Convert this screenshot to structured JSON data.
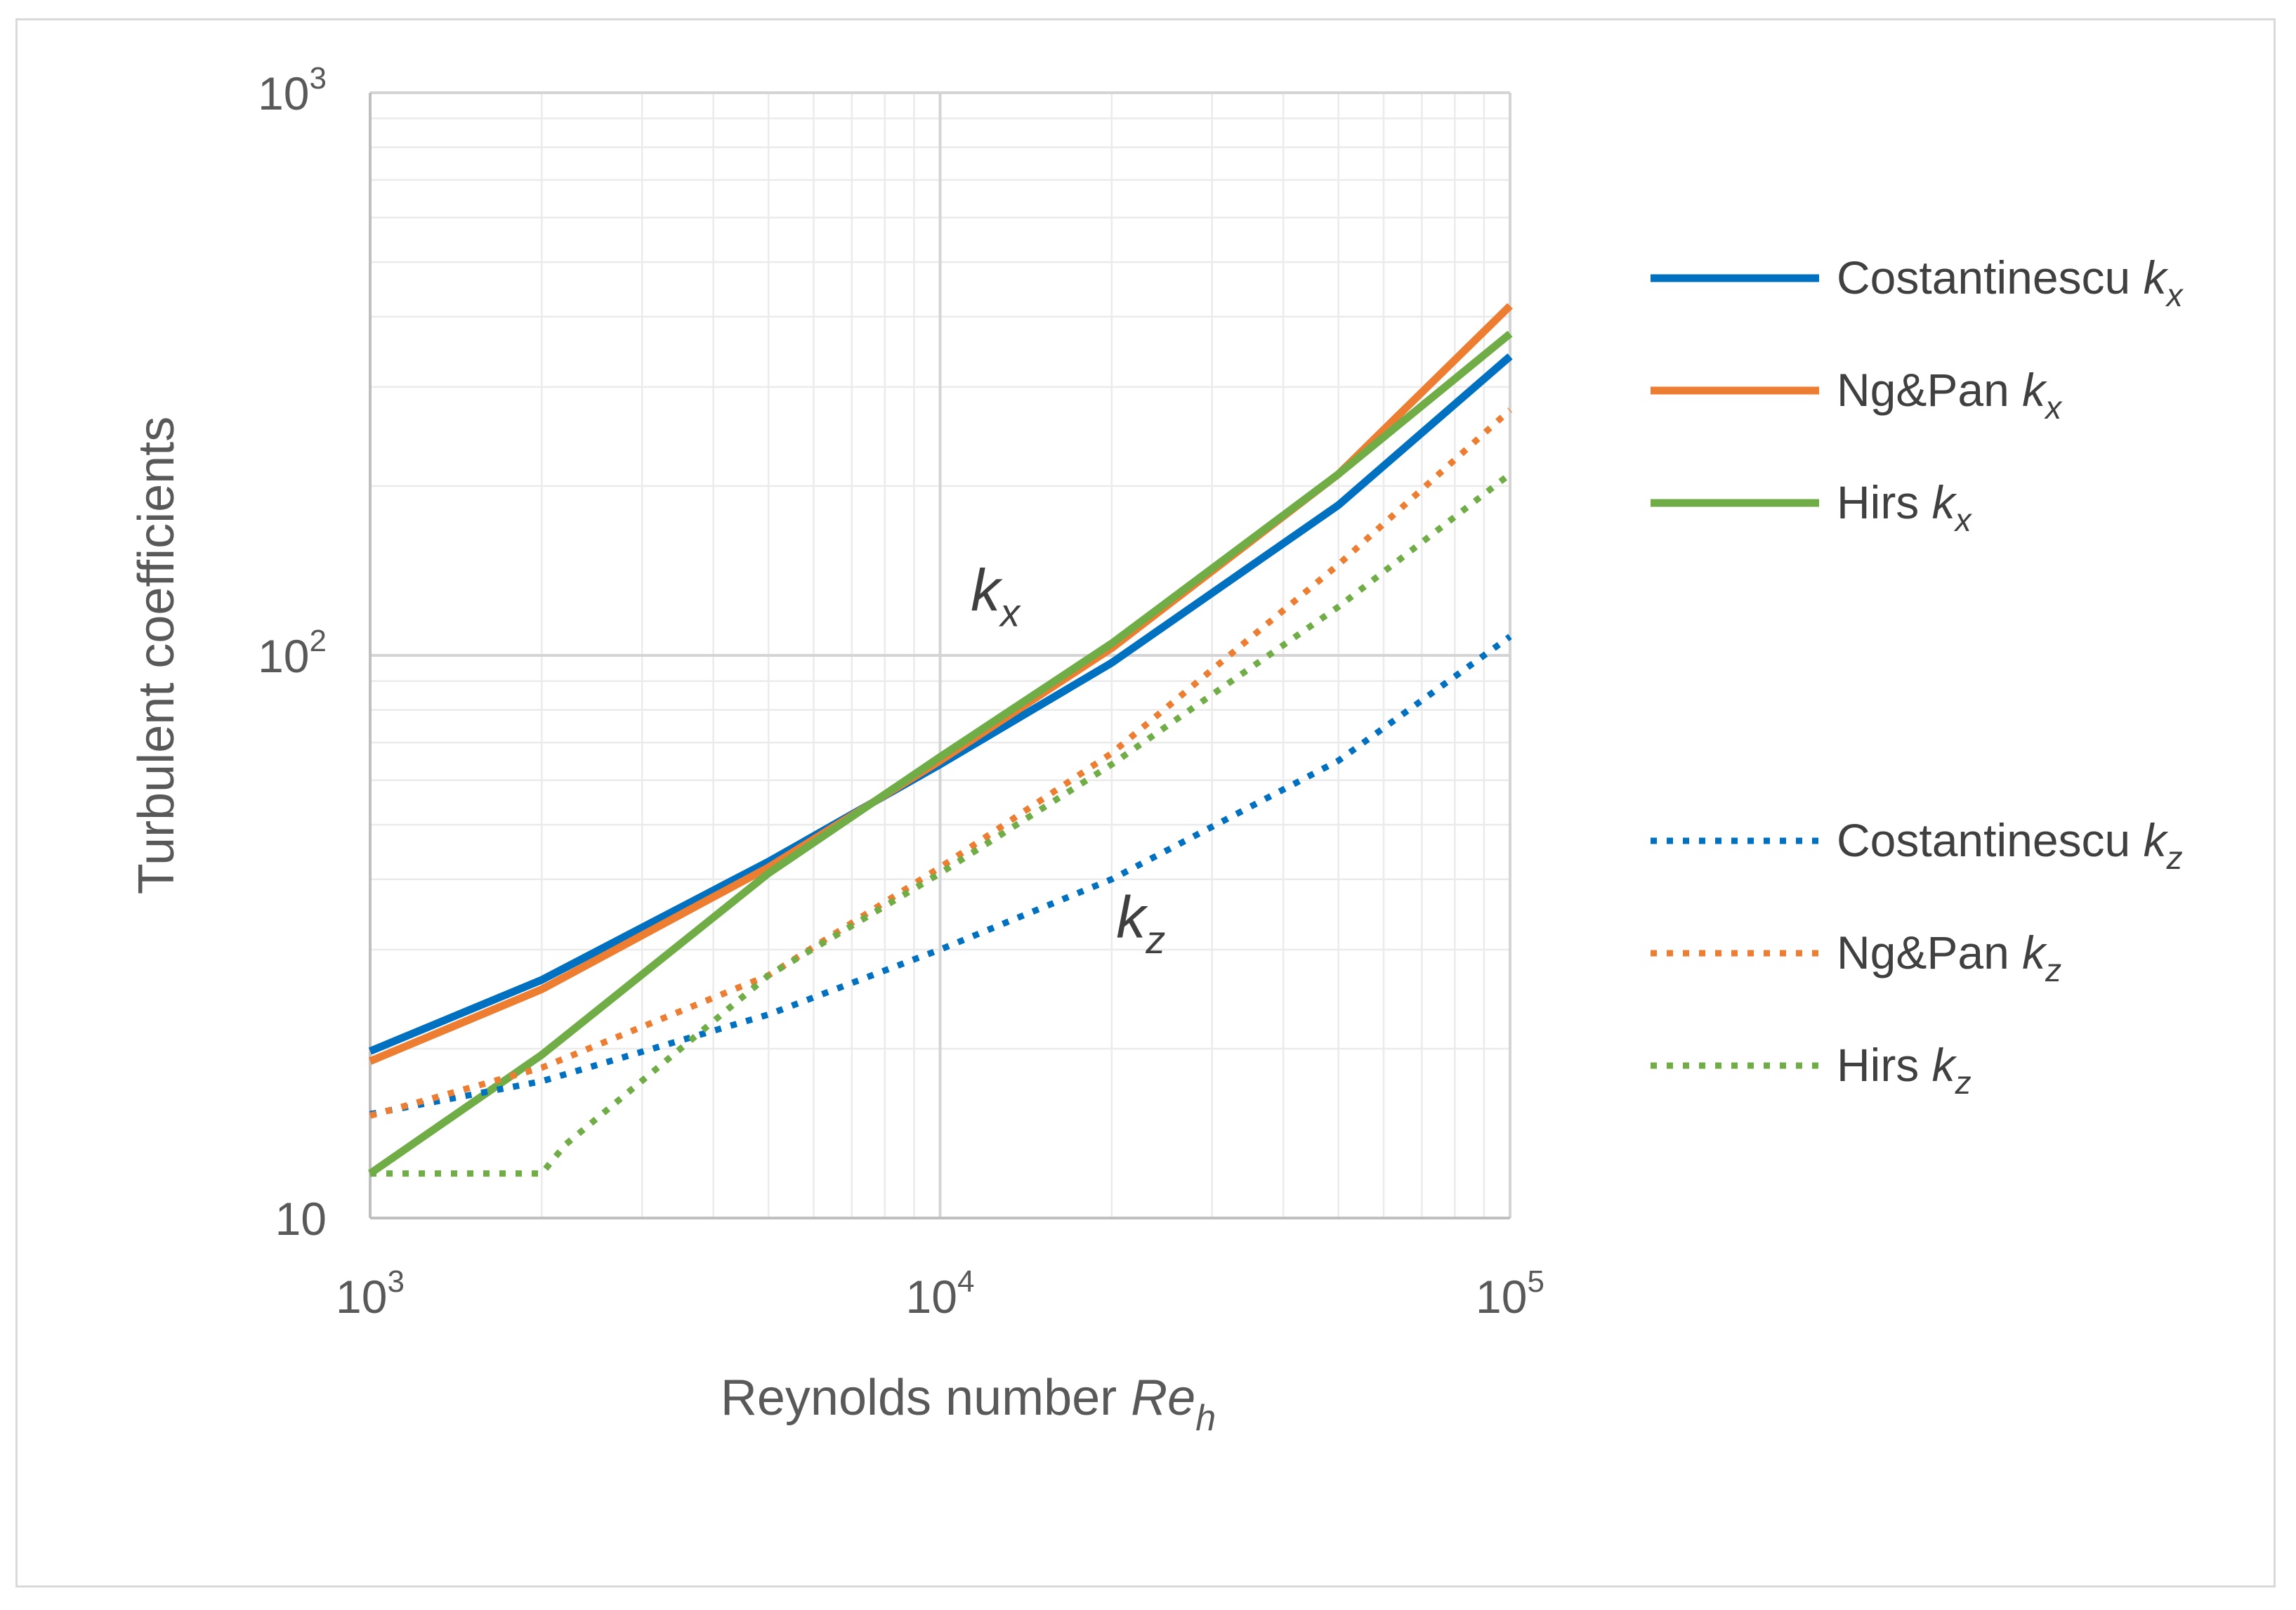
{
  "chart_data": {
    "type": "line",
    "title": "",
    "xlabel": "Reynolds number",
    "xlabel_var": "Re",
    "xlabel_sub": "h",
    "ylabel": "Turbulent coefficients",
    "xscale": "log",
    "yscale": "log",
    "xlim": [
      1000,
      100000
    ],
    "ylim": [
      10,
      1000
    ],
    "grid": true,
    "legend_position": "right",
    "x_ticks": [
      {
        "value": 1000,
        "base": "10",
        "exp": "3"
      },
      {
        "value": 10000,
        "base": "10",
        "exp": "4"
      },
      {
        "value": 100000,
        "base": "10",
        "exp": "5"
      }
    ],
    "y_ticks": [
      {
        "value": 10,
        "base": "10",
        "exp": ""
      },
      {
        "value": 100,
        "base": "10",
        "exp": "2"
      },
      {
        "value": 1000,
        "base": "10",
        "exp": "3"
      }
    ],
    "annotations": [
      {
        "var": "k",
        "sub": "x",
        "x": 12500,
        "y": 120
      },
      {
        "var": "k",
        "sub": "z",
        "x": 22500,
        "y": 31.5
      }
    ],
    "series": [
      {
        "name": "Costantinescu",
        "var": "k",
        "sub": "x",
        "color": "#0070c0",
        "style": "solid",
        "x": [
          1000,
          2000,
          5000,
          10000,
          20000,
          50000,
          100000
        ],
        "y": [
          19.8,
          26.5,
          43,
          64,
          97,
          185,
          340
        ]
      },
      {
        "name": "Ng&Pan",
        "var": "k",
        "sub": "x",
        "color": "#ed7d31",
        "style": "solid",
        "x": [
          1000,
          2000,
          5000,
          10000,
          20000,
          50000,
          100000
        ],
        "y": [
          19.0,
          25.5,
          42,
          65,
          103,
          210,
          418
        ]
      },
      {
        "name": "Hirs",
        "var": "k",
        "sub": "x",
        "color": "#70ad47",
        "style": "solid",
        "x": [
          1000,
          2000,
          5000,
          10000,
          20000,
          50000,
          100000
        ],
        "y": [
          12.0,
          19.5,
          41,
          66,
          105,
          210,
          373
        ]
      },
      {
        "name": "Costantinescu",
        "var": "k",
        "sub": "z",
        "color": "#0070c0",
        "style": "dotted",
        "x": [
          1000,
          2000,
          5000,
          10000,
          20000,
          50000,
          100000
        ],
        "y": [
          15.3,
          17.5,
          23,
          30,
          40,
          65,
          108
        ]
      },
      {
        "name": "Ng&Pan",
        "var": "k",
        "sub": "z",
        "color": "#ed7d31",
        "style": "dotted",
        "x": [
          1000,
          2000,
          5000,
          10000,
          20000,
          50000,
          100000
        ],
        "y": [
          15.2,
          18.5,
          27,
          42,
          67,
          145,
          273
        ]
      },
      {
        "name": "Hirs",
        "var": "k",
        "sub": "z",
        "color": "#70ad47",
        "style": "dotted",
        "x": [
          1000,
          2000,
          2200,
          5000,
          10000,
          20000,
          50000,
          100000
        ],
        "y": [
          12.0,
          12.0,
          13.5,
          27,
          41,
          64,
          122,
          210
        ]
      }
    ]
  }
}
